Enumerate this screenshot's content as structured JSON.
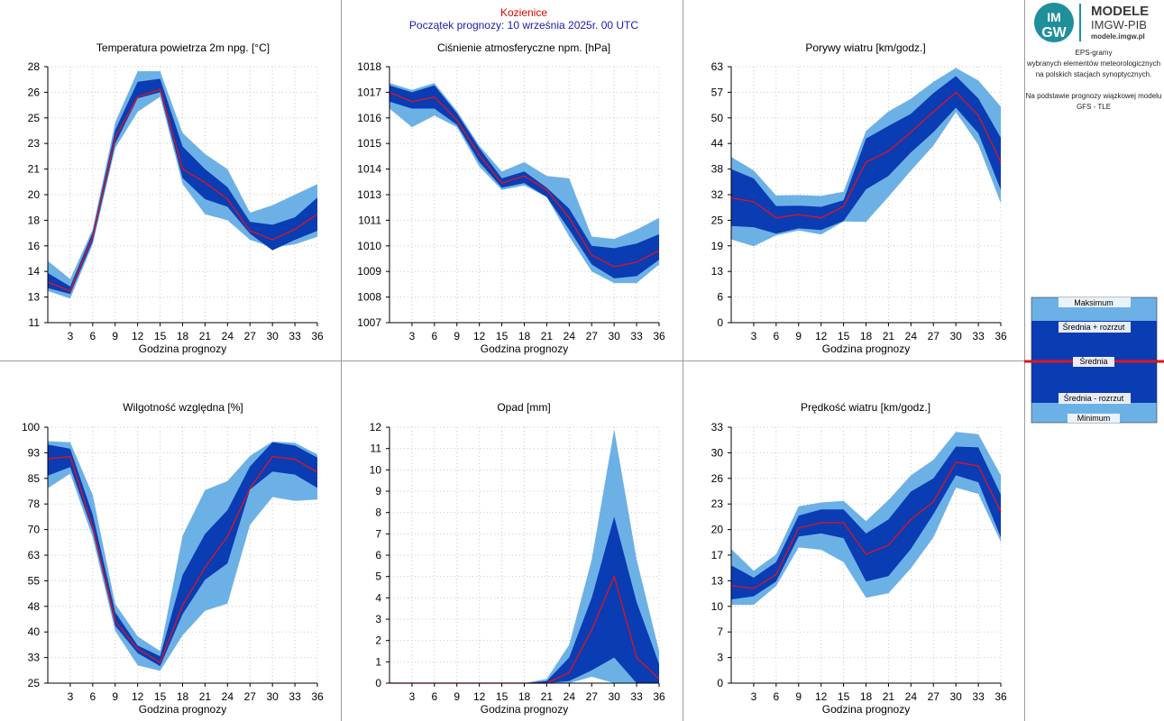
{
  "header": {
    "station": "Kozienice",
    "forecast_start": "Początek prognozy: 10 września 2025r. 00 UTC"
  },
  "logo": {
    "line1": "MODELE",
    "line2": "IMGW-PIB",
    "line3": "modele.imgw.pl",
    "mark_top": "IM",
    "mark_bottom": "GW"
  },
  "description": {
    "lines": [
      "EPS-gramy",
      "wybranych elementów meteorologicznych",
      "na polskich stacjach  synoptycznych.",
      "",
      "Na podstawie prognozy wiązkowej modelu",
      "GFS - TLE"
    ]
  },
  "legend": {
    "max_label": "Maksimum",
    "mean_plus_label": "Średnia + rozrzut",
    "mean_label": "Średnia",
    "mean_minus_label": "Średnia - rozrzut",
    "min_label": "Minimum"
  },
  "colors": {
    "outer_band": "#6cb1e6",
    "inner_band": "#0a3cb4",
    "mean_line": "#e0141e",
    "grid": "#c8c8c8"
  },
  "chart_data": [
    {
      "id": "temp",
      "type": "area",
      "title": "Temperatura powietrza 2m npg. [°C]",
      "xlabel": "Godzina prognozy",
      "x": [
        0,
        3,
        6,
        9,
        12,
        15,
        18,
        21,
        24,
        27,
        30,
        33,
        36
      ],
      "x_ticks": [
        "3",
        "6",
        "9",
        "12",
        "15",
        "18",
        "21",
        "24",
        "27",
        "30",
        "33",
        "36"
      ],
      "ylim": [
        11,
        28
      ],
      "y_ticks": [
        "11",
        "13",
        "14",
        "16",
        "18",
        "20",
        "21",
        "23",
        "25",
        "26",
        "28"
      ],
      "min": [
        13.1,
        12.6,
        16.2,
        22.6,
        25.0,
        26.0,
        20.2,
        18.2,
        17.8,
        16.5,
        16.0,
        16.2,
        16.7
      ],
      "mean_minus": [
        13.3,
        12.9,
        16.4,
        22.9,
        25.9,
        26.3,
        20.6,
        19.2,
        18.7,
        16.9,
        15.8,
        16.5,
        17.1
      ],
      "mean": [
        13.7,
        13.1,
        16.7,
        23.3,
        26.0,
        26.5,
        21.2,
        20.3,
        19.2,
        17.1,
        16.5,
        17.2,
        18.2
      ],
      "mean_plus": [
        14.3,
        13.4,
        17.0,
        23.8,
        27.0,
        27.2,
        22.7,
        21.2,
        20.0,
        17.7,
        17.5,
        18.0,
        19.3
      ],
      "max": [
        15.1,
        13.9,
        17.2,
        24.3,
        27.7,
        27.7,
        23.6,
        22.2,
        21.2,
        18.3,
        18.8,
        19.5,
        20.2
      ]
    },
    {
      "id": "pressure",
      "type": "area",
      "title": "Ciśnienie atmosferyczne npm. [hPa]",
      "xlabel": "Godzina prognozy",
      "x": [
        0,
        3,
        6,
        9,
        12,
        15,
        18,
        21,
        24,
        27,
        30,
        33,
        36
      ],
      "x_ticks": [
        "3",
        "6",
        "9",
        "12",
        "15",
        "18",
        "21",
        "24",
        "27",
        "30",
        "33",
        "36"
      ],
      "ylim": [
        1007,
        1018
      ],
      "y_ticks": [
        "1007",
        "1008",
        "1009",
        "1010",
        "1011",
        "1013",
        "1014",
        "1015",
        "1016",
        "1017",
        "1018"
      ],
      "min": [
        1016.2,
        1015.4,
        1015.9,
        1015.4,
        1013.7,
        1012.7,
        1012.9,
        1012.4,
        1010.7,
        1009.2,
        1008.7,
        1008.7,
        1009.5
      ],
      "mean_minus": [
        1016.5,
        1016.2,
        1016.2,
        1015.5,
        1013.9,
        1012.8,
        1013.0,
        1012.4,
        1011.0,
        1009.5,
        1008.9,
        1009.0,
        1009.7
      ],
      "mean": [
        1016.9,
        1016.5,
        1016.7,
        1015.7,
        1014.2,
        1013.0,
        1013.3,
        1012.7,
        1011.5,
        1009.9,
        1009.4,
        1009.6,
        1010.1
      ],
      "mean_plus": [
        1017.2,
        1016.9,
        1017.2,
        1016.0,
        1014.5,
        1013.2,
        1013.5,
        1012.8,
        1011.9,
        1010.3,
        1010.2,
        1010.4,
        1010.8
      ],
      "max": [
        1017.3,
        1017.0,
        1017.3,
        1016.1,
        1014.6,
        1013.5,
        1013.9,
        1013.3,
        1013.2,
        1010.7,
        1010.6,
        1011.0,
        1011.5
      ]
    },
    {
      "id": "gusts",
      "type": "area",
      "title": "Porywy wiatru [km/godz.]",
      "xlabel": "Godzina prognozy",
      "x": [
        0,
        3,
        6,
        9,
        12,
        15,
        18,
        21,
        24,
        27,
        30,
        33,
        36
      ],
      "x_ticks": [
        "3",
        "6",
        "9",
        "12",
        "15",
        "18",
        "21",
        "24",
        "27",
        "30",
        "33",
        "36"
      ],
      "ylim": [
        0,
        63
      ],
      "y_ticks": [
        "0",
        "6",
        "13",
        "19",
        "25",
        "32",
        "38",
        "44",
        "50",
        "57",
        "63"
      ],
      "min": [
        20.5,
        18.8,
        21.5,
        22.7,
        21.7,
        24.9,
        24.8,
        31.0,
        37.4,
        43.6,
        51.8,
        43.8,
        29.4
      ],
      "mean_minus": [
        23.8,
        23.5,
        21.9,
        23.2,
        22.8,
        25.0,
        32.8,
        36.1,
        41.9,
        46.9,
        52.9,
        46.6,
        32.7
      ],
      "mean": [
        30.7,
        29.8,
        25.8,
        26.6,
        25.8,
        28.6,
        39.5,
        42.2,
        46.9,
        51.9,
        56.7,
        51.0,
        39.5
      ],
      "mean_plus": [
        37.8,
        35.5,
        28.7,
        28.8,
        28.5,
        30.1,
        45.3,
        48.4,
        51.4,
        56.5,
        60.7,
        55.2,
        45.5
      ],
      "max": [
        40.8,
        37.5,
        31.3,
        31.4,
        31.2,
        32.2,
        47.2,
        52.0,
        55.1,
        59.3,
        62.7,
        59.6,
        53.2
      ]
    },
    {
      "id": "humidity",
      "type": "area",
      "title": "Wilgotność względna [%]",
      "xlabel": "Godzina prognozy",
      "x": [
        0,
        3,
        6,
        9,
        12,
        15,
        18,
        21,
        24,
        27,
        30,
        33,
        36
      ],
      "x_ticks": [
        "3",
        "6",
        "9",
        "12",
        "15",
        "18",
        "21",
        "24",
        "27",
        "30",
        "33",
        "36"
      ],
      "ylim": [
        25,
        100
      ],
      "y_ticks": [
        "25",
        "33",
        "40",
        "48",
        "55",
        "63",
        "70",
        "78",
        "85",
        "93",
        "100"
      ],
      "min": [
        82.1,
        86.4,
        67.7,
        40.3,
        30.2,
        28.6,
        39.0,
        46.2,
        48.3,
        71.4,
        79.5,
        78.4,
        78.8
      ],
      "mean_minus": [
        85.8,
        88.3,
        69.6,
        41.8,
        33.8,
        30.0,
        45.2,
        55.3,
        60.1,
        81.7,
        87.0,
        86.1,
        82.2
      ],
      "mean": [
        90.7,
        91.4,
        70.7,
        43.1,
        35.0,
        31.1,
        47.8,
        58.9,
        68.0,
        82.1,
        91.4,
        90.6,
        86.8
      ],
      "mean_plus": [
        94.9,
        93.7,
        74.4,
        45.8,
        36.0,
        32.9,
        56.7,
        68.7,
        75.7,
        88.5,
        95.6,
        94.6,
        91.1
      ],
      "max": [
        95.9,
        95.6,
        80.2,
        48.2,
        38.7,
        34.4,
        68.2,
        81.6,
        84.2,
        91.6,
        95.8,
        95.4,
        92.0
      ]
    },
    {
      "id": "precip",
      "type": "area",
      "title": "Opad [mm]",
      "xlabel": "Godzina prognozy",
      "x": [
        0,
        3,
        6,
        9,
        12,
        15,
        18,
        21,
        24,
        27,
        30,
        33,
        36
      ],
      "x_ticks": [
        "3",
        "6",
        "9",
        "12",
        "15",
        "18",
        "21",
        "24",
        "27",
        "30",
        "33",
        "36"
      ],
      "ylim": [
        0,
        12
      ],
      "y_ticks": [
        "0",
        "1",
        "2",
        "3",
        "4",
        "5",
        "6",
        "7",
        "8",
        "9",
        "10",
        "11",
        "12"
      ],
      "min": [
        0,
        0,
        0,
        0,
        0,
        0,
        0,
        0,
        0,
        0.3,
        0,
        0,
        0
      ],
      "mean_minus": [
        0,
        0,
        0,
        0,
        0,
        0,
        0,
        0,
        0.1,
        0.6,
        1.2,
        0,
        0
      ],
      "mean": [
        0,
        0,
        0,
        0,
        0,
        0,
        0,
        0,
        0.5,
        2.5,
        5.0,
        1.2,
        0.2
      ],
      "mean_plus": [
        0,
        0,
        0,
        0,
        0,
        0,
        0,
        0.1,
        1.2,
        4.0,
        7.8,
        3.8,
        0.9
      ],
      "max": [
        0,
        0,
        0,
        0,
        0,
        0,
        0,
        0.2,
        1.8,
        5.8,
        11.9,
        5.8,
        1.5
      ]
    },
    {
      "id": "wind",
      "type": "area",
      "title": "Prędkość wiatru [km/godz.]",
      "xlabel": "Godzina prognozy",
      "x": [
        0,
        3,
        6,
        9,
        12,
        15,
        18,
        21,
        24,
        27,
        30,
        33,
        36
      ],
      "x_ticks": [
        "3",
        "6",
        "9",
        "12",
        "15",
        "18",
        "21",
        "24",
        "27",
        "30",
        "33",
        "36"
      ],
      "ylim": [
        0,
        33
      ],
      "y_ticks": [
        "0",
        "3",
        "7",
        "10",
        "13",
        "17",
        "20",
        "23",
        "26",
        "30",
        "33"
      ],
      "min": [
        10.1,
        10.1,
        12.5,
        17.5,
        17.2,
        15.6,
        11.0,
        11.6,
        14.8,
        18.8,
        25.2,
        24.4,
        18.2
      ],
      "mean_minus": [
        10.8,
        11.2,
        13.1,
        18.9,
        19.3,
        18.7,
        13.1,
        13.8,
        17.3,
        21.8,
        26.8,
        25.9,
        18.8
      ],
      "mean": [
        12.6,
        12.2,
        14.0,
        20.0,
        20.7,
        20.7,
        16.6,
        17.8,
        21.1,
        23.4,
        28.5,
        28.0,
        22.1
      ],
      "mean_plus": [
        15.2,
        13.6,
        15.6,
        21.6,
        22.4,
        22.4,
        19.3,
        21.1,
        24.7,
        26.4,
        30.5,
        30.4,
        24.3
      ],
      "max": [
        17.3,
        14.5,
        16.6,
        22.8,
        23.3,
        23.5,
        20.9,
        23.6,
        26.8,
        28.8,
        32.4,
        32.1,
        26.8
      ]
    }
  ]
}
